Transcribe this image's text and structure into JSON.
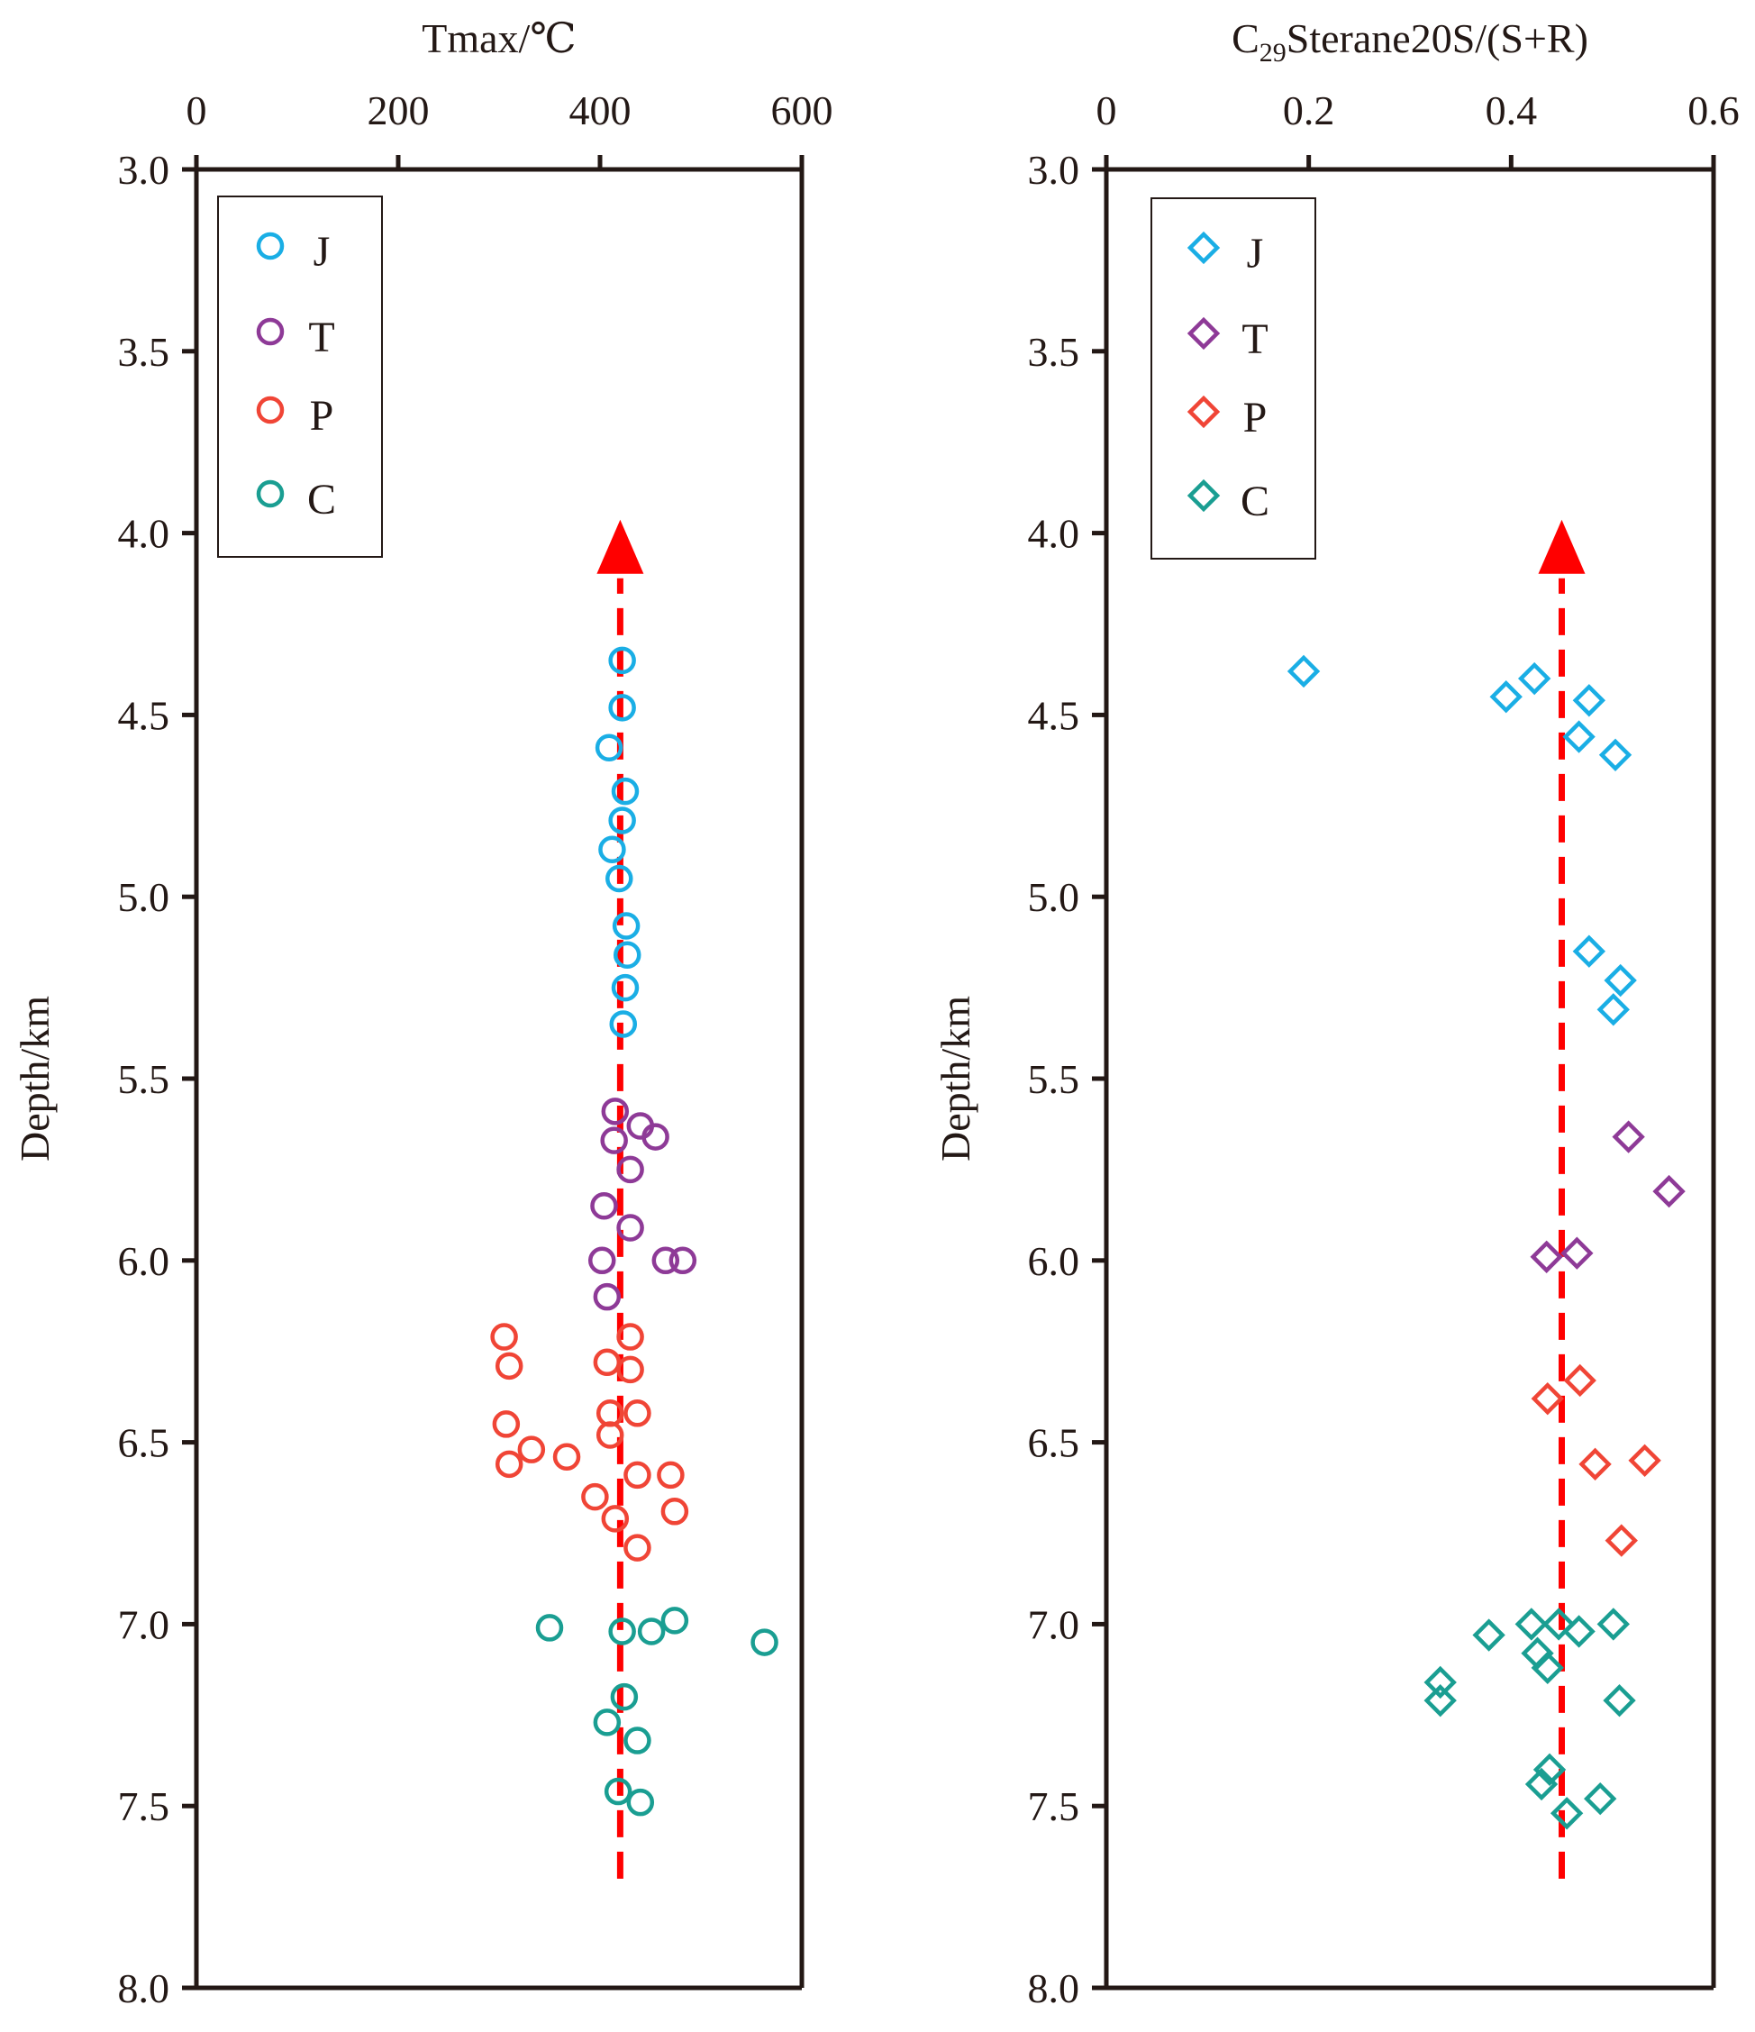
{
  "chart_data": [
    {
      "type": "scatter",
      "title": "",
      "xlabel": "Tmax/℃",
      "ylabel": "Depth/km",
      "xlim": [
        0,
        600
      ],
      "ylim": [
        3.0,
        8.0
      ],
      "y_inverted": true,
      "x_axis_position": "top",
      "xticks": [
        "0",
        "200",
        "400",
        "600"
      ],
      "yticks": [
        "3.0",
        "3.5",
        "4.0",
        "4.5",
        "5.0",
        "5.5",
        "6.0",
        "6.5",
        "7.0",
        "7.5",
        "8.0"
      ],
      "marker": "circle",
      "legend": {
        "position": "top-left",
        "entries": [
          "J",
          "T",
          "P",
          "C"
        ]
      },
      "trend_arrow": {
        "x": 420,
        "y_from": 7.7,
        "y_to": 4.05,
        "color": "#ff0000",
        "style": "dashed"
      },
      "series": [
        {
          "name": "J",
          "color": "#1aaee5",
          "points": [
            [
              422,
              4.35
            ],
            [
              422,
              4.48
            ],
            [
              409,
              4.59
            ],
            [
              425,
              4.71
            ],
            [
              422,
              4.79
            ],
            [
              412,
              4.87
            ],
            [
              419,
              4.95
            ],
            [
              426,
              5.08
            ],
            [
              427,
              5.16
            ],
            [
              425,
              5.25
            ],
            [
              423,
              5.35
            ]
          ]
        },
        {
          "name": "T",
          "color": "#8e3a97",
          "points": [
            [
              415,
              5.59
            ],
            [
              440,
              5.63
            ],
            [
              455,
              5.66
            ],
            [
              414,
              5.67
            ],
            [
              430,
              5.75
            ],
            [
              404,
              5.85
            ],
            [
              430,
              5.91
            ],
            [
              465,
              6.0
            ],
            [
              482,
              6.0
            ],
            [
              402,
              6.0
            ],
            [
              407,
              6.1
            ]
          ]
        },
        {
          "name": "P",
          "color": "#f04536",
          "points": [
            [
              305,
              6.21
            ],
            [
              430,
              6.21
            ],
            [
              310,
              6.29
            ],
            [
              407,
              6.28
            ],
            [
              430,
              6.3
            ],
            [
              410,
              6.42
            ],
            [
              437,
              6.42
            ],
            [
              307,
              6.45
            ],
            [
              410,
              6.48
            ],
            [
              332,
              6.52
            ],
            [
              367,
              6.54
            ],
            [
              310,
              6.56
            ],
            [
              437,
              6.59
            ],
            [
              470,
              6.59
            ],
            [
              395,
              6.65
            ],
            [
              415,
              6.71
            ],
            [
              474,
              6.69
            ],
            [
              437,
              6.79
            ]
          ]
        },
        {
          "name": "C",
          "color": "#1a9e92",
          "points": [
            [
              350,
              7.01
            ],
            [
              422,
              7.02
            ],
            [
              451,
              7.02
            ],
            [
              474,
              6.99
            ],
            [
              563,
              7.05
            ],
            [
              424,
              7.2
            ],
            [
              407,
              7.27
            ],
            [
              437,
              7.32
            ],
            [
              418,
              7.46
            ],
            [
              440,
              7.49
            ]
          ]
        }
      ]
    },
    {
      "type": "scatter",
      "title": "",
      "xlabel_main": "C",
      "xlabel_sub": "29",
      "xlabel_rest": "Sterane20S/(S+R)",
      "ylabel": "Depth/km",
      "xlim": [
        0,
        0.6
      ],
      "ylim": [
        3.0,
        8.0
      ],
      "y_inverted": true,
      "x_axis_position": "top",
      "xticks": [
        "0",
        "0.2",
        "0.4",
        "0.6"
      ],
      "yticks": [
        "3.0",
        "3.5",
        "4.0",
        "4.5",
        "5.0",
        "5.5",
        "6.0",
        "6.5",
        "7.0",
        "7.5",
        "8.0"
      ],
      "marker": "diamond",
      "legend": {
        "position": "top-left",
        "entries": [
          "J",
          "T",
          "P",
          "C"
        ]
      },
      "trend_arrow": {
        "x": 0.45,
        "y_from": 7.7,
        "y_to": 4.05,
        "color": "#ff0000",
        "style": "dashed"
      },
      "series": [
        {
          "name": "J",
          "color": "#1aaee5",
          "points": [
            [
              0.195,
              4.38
            ],
            [
              0.423,
              4.4
            ],
            [
              0.395,
              4.45
            ],
            [
              0.477,
              4.46
            ],
            [
              0.467,
              4.56
            ],
            [
              0.503,
              4.61
            ],
            [
              0.477,
              5.15
            ],
            [
              0.508,
              5.23
            ],
            [
              0.501,
              5.31
            ]
          ]
        },
        {
          "name": "T",
          "color": "#8e3a97",
          "points": [
            [
              0.516,
              5.66
            ],
            [
              0.556,
              5.81
            ],
            [
              0.435,
              5.99
            ],
            [
              0.465,
              5.98
            ]
          ]
        },
        {
          "name": "P",
          "color": "#f04536",
          "points": [
            [
              0.468,
              6.33
            ],
            [
              0.436,
              6.38
            ],
            [
              0.532,
              6.55
            ],
            [
              0.483,
              6.56
            ],
            [
              0.509,
              6.77
            ]
          ]
        },
        {
          "name": "C",
          "color": "#1a9e92",
          "points": [
            [
              0.42,
              7.0
            ],
            [
              0.447,
              7.0
            ],
            [
              0.501,
              7.0
            ],
            [
              0.467,
              7.02
            ],
            [
              0.378,
              7.03
            ],
            [
              0.426,
              7.08
            ],
            [
              0.436,
              7.12
            ],
            [
              0.33,
              7.16
            ],
            [
              0.33,
              7.21
            ],
            [
              0.507,
              7.21
            ],
            [
              0.438,
              7.4
            ],
            [
              0.43,
              7.44
            ],
            [
              0.488,
              7.48
            ],
            [
              0.455,
              7.52
            ]
          ]
        }
      ]
    }
  ]
}
